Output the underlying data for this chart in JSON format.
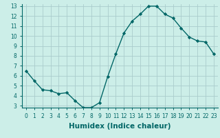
{
  "x": [
    0,
    1,
    2,
    3,
    4,
    5,
    6,
    7,
    8,
    9,
    10,
    11,
    12,
    13,
    14,
    15,
    16,
    17,
    18,
    19,
    20,
    21,
    22,
    23
  ],
  "y": [
    6.5,
    5.5,
    4.6,
    4.5,
    4.2,
    4.3,
    3.5,
    2.8,
    2.8,
    3.3,
    5.9,
    8.2,
    10.3,
    11.5,
    12.2,
    13.0,
    13.0,
    12.2,
    11.8,
    10.8,
    9.9,
    9.5,
    9.4,
    8.2
  ],
  "xlabel": "Humidex (Indice chaleur)",
  "bg_color": "#cceee8",
  "grid_color": "#aacccc",
  "line_color": "#006666",
  "marker_color": "#006666",
  "ylim": [
    3,
    13
  ],
  "xlim": [
    -0.5,
    23.5
  ],
  "yticks": [
    3,
    4,
    5,
    6,
    7,
    8,
    9,
    10,
    11,
    12,
    13
  ],
  "xticks": [
    0,
    1,
    2,
    3,
    4,
    5,
    6,
    7,
    8,
    9,
    10,
    11,
    12,
    13,
    14,
    15,
    16,
    17,
    18,
    19,
    20,
    21,
    22,
    23
  ],
  "tick_label_fontsize": 5.5,
  "xlabel_fontsize": 7.5
}
